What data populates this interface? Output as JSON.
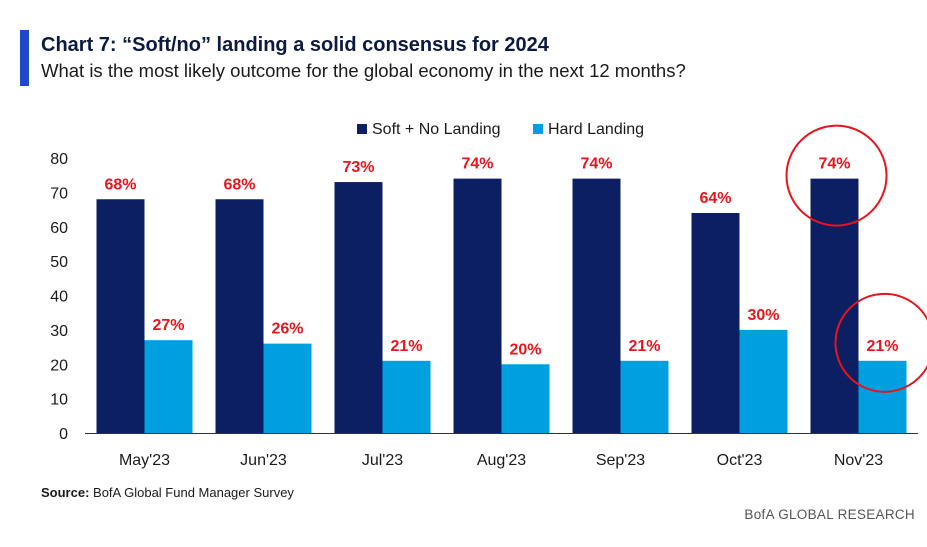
{
  "header": {
    "title": "Chart 7: “Soft/no” landing a solid consensus for 2024",
    "subtitle": "What is the most likely outcome for the global economy in the next 12 months?"
  },
  "footer": {
    "source_label": "Source:",
    "source_text": "BofA Global Fund Manager Survey",
    "brand": "BofA GLOBAL RESEARCH"
  },
  "colors": {
    "accent": "#1f49c8",
    "soft": "#0b1f62",
    "hard": "#00a0e0",
    "label": "#e8141b",
    "circle": "#e8141b"
  },
  "chart_data": {
    "type": "bar",
    "title": "Chart 7: “Soft/no” landing a solid consensus for 2024",
    "subtitle": "What is the most likely outcome for the global economy in the next 12 months?",
    "categories": [
      "May'23",
      "Jun'23",
      "Jul'23",
      "Aug'23",
      "Sep'23",
      "Oct'23",
      "Nov'23"
    ],
    "series": [
      {
        "name": "Soft + No Landing",
        "values": [
          68,
          68,
          73,
          74,
          74,
          64,
          74
        ],
        "labels": [
          "68%",
          "68%",
          "73%",
          "74%",
          "74%",
          "64%",
          "74%"
        ]
      },
      {
        "name": "Hard Landing",
        "values": [
          27,
          26,
          21,
          20,
          21,
          30,
          21
        ],
        "labels": [
          "27%",
          "26%",
          "21%",
          "20%",
          "21%",
          "30%",
          "21%"
        ]
      }
    ],
    "ylim": [
      0,
      80
    ],
    "yticks": [
      "0",
      "10",
      "20",
      "30",
      "40",
      "50",
      "60",
      "70",
      "80"
    ],
    "grid": false,
    "legend": "top-center",
    "annotations": [
      "circle around Nov'23 Soft + No Landing label",
      "circle around Nov'23 Hard Landing label"
    ]
  }
}
